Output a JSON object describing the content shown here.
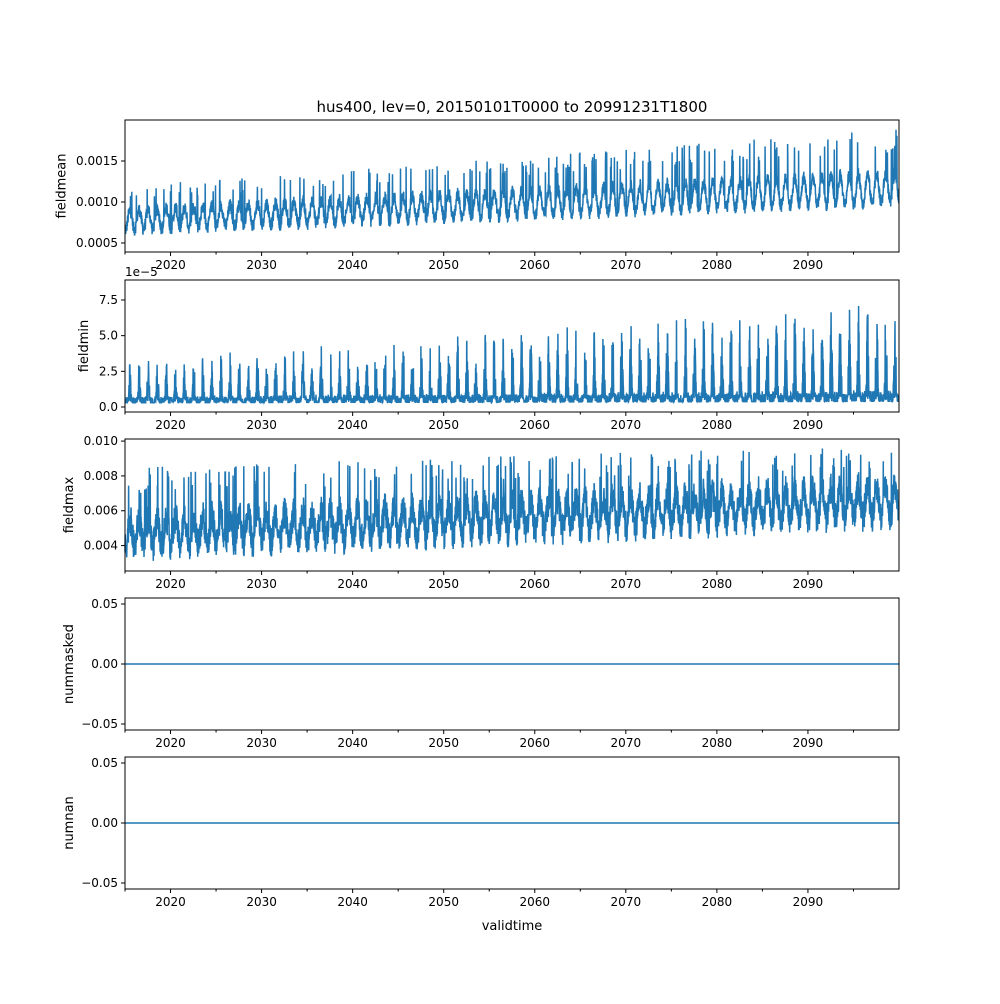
{
  "chart_data": {
    "type": "line",
    "title": "hus400, lev=0, 20150101T0000 to 20991231T1800",
    "xlabel": "validtime",
    "xlim": [
      2015.0,
      2100.0
    ],
    "xticks": [
      "2020",
      "2030",
      "2040",
      "2050",
      "2060",
      "2070",
      "2080",
      "2090"
    ],
    "line_color": "#1f77b4",
    "panels": [
      {
        "ylabel": "fieldmean",
        "ylim": [
          0.00039,
          0.002
        ],
        "yticks": [
          {
            "v": 0.0005,
            "label": "0.0005"
          },
          {
            "v": 0.001,
            "label": "0.0010"
          },
          {
            "v": 0.0015,
            "label": "0.0015"
          }
        ],
        "offset_text": "",
        "series": {
          "base_start": 0.00078,
          "base_end": 0.00118,
          "season_amp_start": 0.00012,
          "season_amp_end": 0.00018,
          "noise": 8e-05,
          "peak_start": 0.0012,
          "peak_end": 0.0019,
          "min_floor": 0.00045
        }
      },
      {
        "ylabel": "fieldmin",
        "ylim": [
          -0.35,
          8.9
        ],
        "yticks": [
          {
            "v": 0.0,
            "label": "0.0"
          },
          {
            "v": 2.5,
            "label": "2.5"
          },
          {
            "v": 5.0,
            "label": "5.0"
          },
          {
            "v": 7.5,
            "label": "7.5"
          }
        ],
        "offset_text": "1e−5",
        "series": {
          "base_start": 0.3,
          "base_end": 0.4,
          "season_amp_start": 0.2,
          "season_amp_end": 0.5,
          "noise": 0.3,
          "peak_start": 3.0,
          "peak_end": 7.0,
          "min_floor": 0.0
        }
      },
      {
        "ylabel": "fieldmax",
        "ylim": [
          0.00254,
          0.01012
        ],
        "yticks": [
          {
            "v": 0.004,
            "label": "0.004"
          },
          {
            "v": 0.006,
            "label": "0.006"
          },
          {
            "v": 0.008,
            "label": "0.008"
          },
          {
            "v": 0.01,
            "label": "0.010"
          }
        ],
        "offset_text": "",
        "series": {
          "base_start": 0.0047,
          "base_end": 0.0066,
          "season_amp_start": 0.0008,
          "season_amp_end": 0.0009,
          "noise": 0.0009,
          "peak_start": 0.0085,
          "peak_end": 0.0098,
          "min_floor": 0.003
        }
      },
      {
        "ylabel": "nummasked",
        "ylim": [
          -0.055,
          0.055
        ],
        "yticks": [
          {
            "v": -0.05,
            "label": "−0.05"
          },
          {
            "v": 0.0,
            "label": "0.00"
          },
          {
            "v": 0.05,
            "label": "0.05"
          }
        ],
        "offset_text": "",
        "constant": 0
      },
      {
        "ylabel": "numnan",
        "ylim": [
          -0.055,
          0.055
        ],
        "yticks": [
          {
            "v": -0.05,
            "label": "−0.05"
          },
          {
            "v": 0.0,
            "label": "0.00"
          },
          {
            "v": 0.05,
            "label": "0.05"
          }
        ],
        "offset_text": "",
        "constant": 0
      }
    ]
  }
}
